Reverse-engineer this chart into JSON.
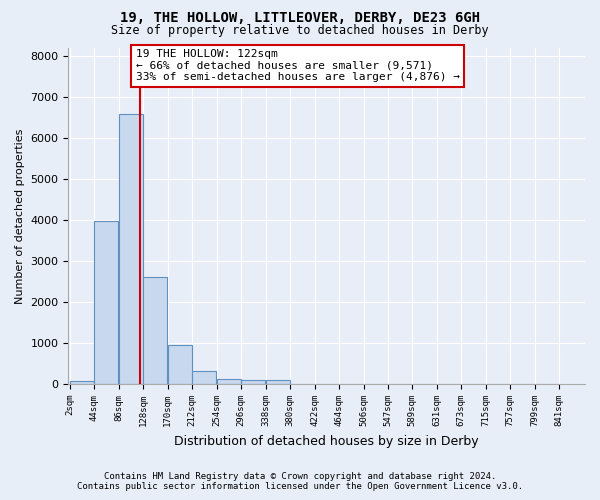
{
  "title1": "19, THE HOLLOW, LITTLEOVER, DERBY, DE23 6GH",
  "title2": "Size of property relative to detached houses in Derby",
  "xlabel": "Distribution of detached houses by size in Derby",
  "ylabel": "Number of detached properties",
  "footer1": "Contains HM Land Registry data © Crown copyright and database right 2024.",
  "footer2": "Contains public sector information licensed under the Open Government Licence v3.0.",
  "annotation_title": "19 THE HOLLOW: 122sqm",
  "annotation_line1": "← 66% of detached houses are smaller (9,571)",
  "annotation_line2": "33% of semi-detached houses are larger (4,876) →",
  "property_size_sqm": 122,
  "bins": [
    2,
    44,
    86,
    128,
    170,
    212,
    254,
    296,
    338,
    380,
    422,
    464,
    506,
    547,
    589,
    631,
    673,
    715,
    757,
    799,
    841
  ],
  "bar_heights": [
    75,
    3980,
    6580,
    2620,
    960,
    315,
    120,
    110,
    90,
    0,
    0,
    0,
    0,
    0,
    0,
    0,
    0,
    0,
    0,
    0
  ],
  "bar_color": "#c8d8ee",
  "bar_edge_color": "#6090c0",
  "vertical_line_color": "#cc0000",
  "annotation_box_edge_color": "#cc0000",
  "annotation_box_face_color": "#ffffff",
  "background_color": "#e8eef8",
  "grid_color": "#ffffff",
  "ylim": [
    0,
    8200
  ],
  "yticks": [
    0,
    1000,
    2000,
    3000,
    4000,
    5000,
    6000,
    7000,
    8000
  ]
}
